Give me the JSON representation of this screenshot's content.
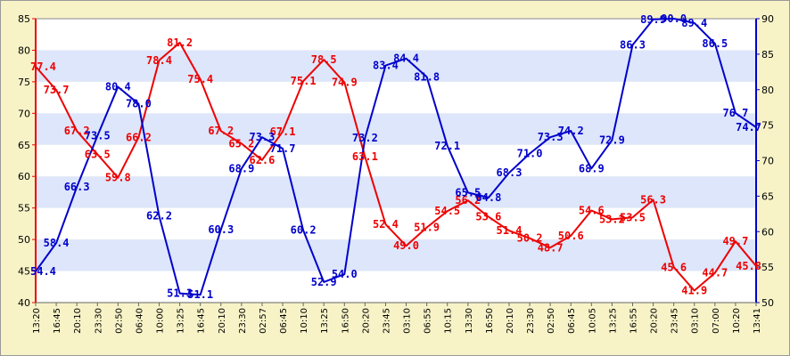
{
  "chart_data": {
    "type": "line",
    "title": "",
    "xlabel": "",
    "categories": [
      "13:20",
      "16:45",
      "20:10",
      "23:30",
      "02:50",
      "06:40",
      "10:00",
      "13:25",
      "16:45",
      "20:10",
      "23:30",
      "02:57",
      "06:45",
      "10:10",
      "13:25",
      "16:50",
      "20:20",
      "23:45",
      "03:10",
      "06:55",
      "10:15",
      "13:30",
      "16:50",
      "20:10",
      "23:30",
      "02:50",
      "06:45",
      "10:05",
      "13:25",
      "16:55",
      "20:20",
      "23:45",
      "03:10",
      "07:00",
      "10:20",
      "13:41"
    ],
    "series": [
      {
        "axis": "left",
        "color": "#ee0000",
        "values": [
          77.4,
          73.7,
          67.2,
          63.5,
          59.8,
          66.2,
          78.4,
          81.2,
          75.4,
          67.2,
          65.2,
          62.6,
          67.1,
          75.1,
          78.5,
          74.9,
          63.1,
          52.4,
          49.0,
          51.9,
          54.5,
          56.2,
          53.6,
          51.4,
          50.2,
          48.7,
          50.6,
          54.6,
          53.2,
          53.5,
          56.3,
          45.6,
          41.9,
          44.7,
          49.7,
          45.8
        ],
        "labels": [
          "77.4",
          "73.7",
          "67.2",
          "63.5",
          "59.8",
          "66.2",
          "78.4",
          "81.2",
          "75.4",
          "67.2",
          "65.2",
          "62.6",
          "67.1",
          "75.1",
          "78.5",
          "74.9",
          "63.1",
          "52.4",
          "49.0",
          "51.9",
          "54.5",
          "56.2",
          "53.6",
          "51.4",
          "50.2",
          "48.7",
          "50.6",
          "54.6",
          "53.2",
          "53.5",
          "56.3",
          "45.6",
          "41.9",
          "44.7",
          "49.7",
          "45.8"
        ]
      },
      {
        "axis": "right",
        "color": "#0000cc",
        "values": [
          54.4,
          58.4,
          66.3,
          73.5,
          80.4,
          78.0,
          62.2,
          51.3,
          51.1,
          60.3,
          68.9,
          73.3,
          71.7,
          60.2,
          52.9,
          54.0,
          73.2,
          83.4,
          84.4,
          81.8,
          72.1,
          65.5,
          64.8,
          68.3,
          71.0,
          73.3,
          74.2,
          68.9,
          72.9,
          86.3,
          89.9,
          90.0,
          89.4,
          86.5,
          76.7,
          74.7
        ],
        "labels": [
          "54.4",
          "58.4",
          "66.3",
          "73.5",
          "80.4",
          "78.0",
          "62.2",
          "51.3",
          "51.1",
          "60.3",
          "68.9",
          "73.3",
          "71.7",
          "60.2",
          "52.9",
          "54.0",
          "73.2",
          "83.4",
          "84.4",
          "81.8",
          "72.1",
          "65.5",
          "64.8",
          "68.3",
          "71.0",
          "73.3",
          "74.2",
          "68.9",
          "72.9",
          "86.3",
          "89.9",
          "90.0",
          "89.4",
          "86.5",
          "76.7",
          "74.7"
        ]
      }
    ],
    "y_left": {
      "min": 40,
      "max": 85,
      "ticks": [
        "40",
        "45",
        "50",
        "55",
        "60",
        "65",
        "70",
        "75",
        "80",
        "85"
      ],
      "color": "#ee0000"
    },
    "y_right": {
      "min": 50,
      "max": 90,
      "ticks": [
        "50",
        "55",
        "60",
        "65",
        "70",
        "75",
        "80",
        "85",
        "90"
      ],
      "color": "#0000cc"
    },
    "grid": true,
    "legend": "none",
    "colors": {
      "frame": "#f7f3c7",
      "band_light": "#ffffff",
      "band_dark": "#dde6fb",
      "tick_text": "#000000"
    }
  }
}
